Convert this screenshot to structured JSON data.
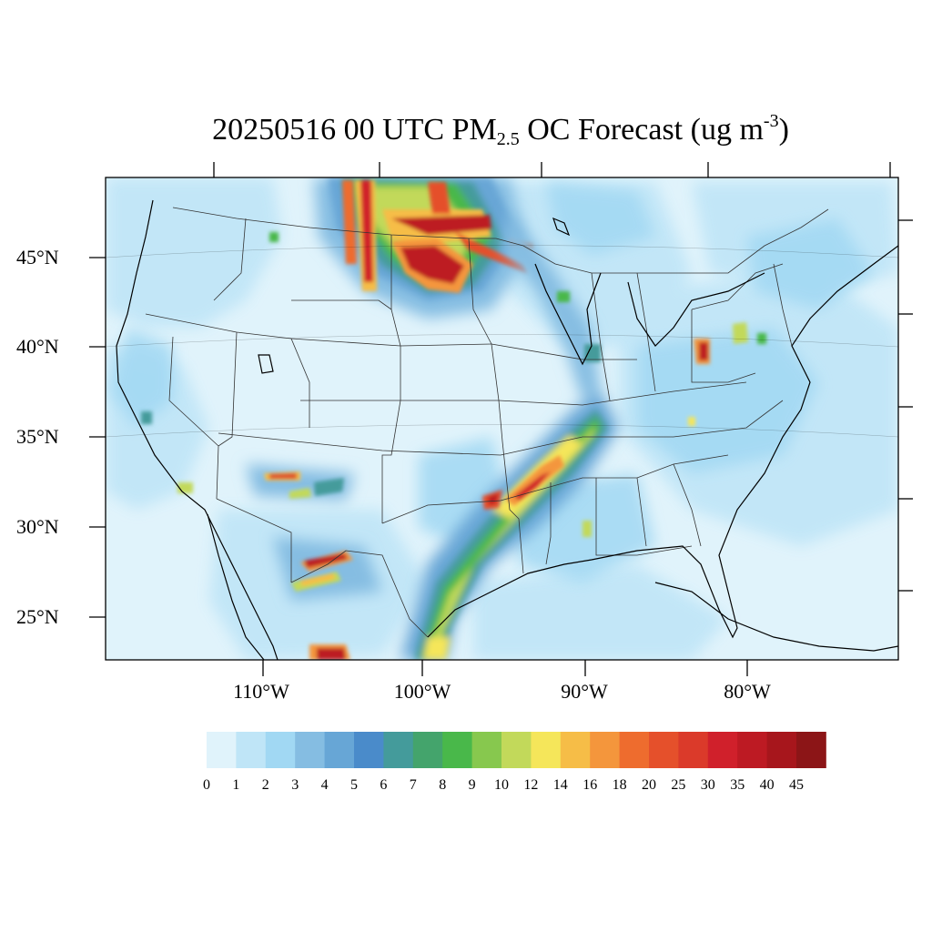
{
  "title": {
    "main": "20250516 00 UTC PM",
    "sub": "2.5",
    "mid": " OC Forecast (ug m",
    "sup": "-3",
    "end": ")"
  },
  "axes": {
    "lat_labels": [
      "45°N",
      "40°N",
      "35°N",
      "30°N",
      "25°N"
    ],
    "lon_labels": [
      "110°W",
      "100°W",
      "90°W",
      "80°W"
    ]
  },
  "colorbar": {
    "levels": [
      "0",
      "1",
      "2",
      "3",
      "4",
      "5",
      "6",
      "7",
      "8",
      "9",
      "10",
      "12",
      "14",
      "16",
      "18",
      "20",
      "25",
      "30",
      "35",
      "40",
      "45"
    ],
    "colors": [
      "#e0f3fb",
      "#bfe5f7",
      "#a1d8f3",
      "#85bde2",
      "#67a6d6",
      "#4a8bca",
      "#449b9b",
      "#44a46c",
      "#49b84a",
      "#87c84e",
      "#c2d95a",
      "#f5e65a",
      "#f6bd47",
      "#f4963c",
      "#ee6c2e",
      "#e5502b",
      "#db3a2a",
      "#d0202b",
      "#bd1a23",
      "#a7161c",
      "#8c1517"
    ]
  }
}
